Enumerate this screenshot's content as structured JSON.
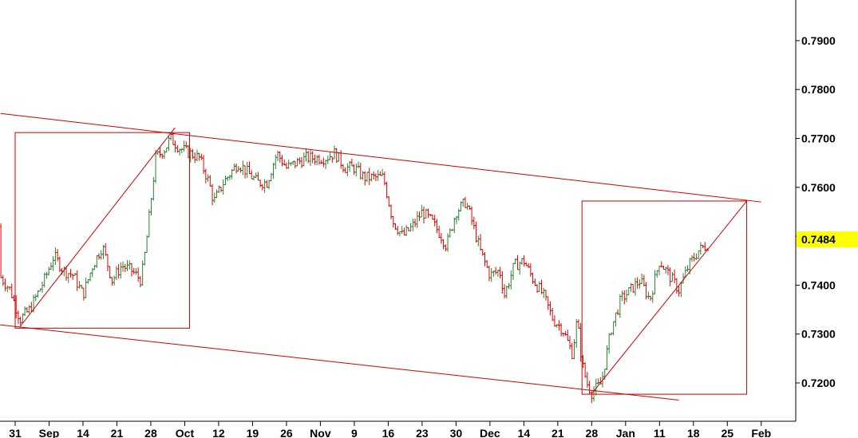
{
  "chart_data": {
    "type": "candlestick",
    "x_tick_labels": [
      "31",
      "Sep",
      "14",
      "21",
      "28",
      "Oct",
      "12",
      "19",
      "26",
      "Nov",
      "9",
      "16",
      "23",
      "30",
      "Dec",
      "14",
      "21",
      "28",
      "Jan",
      "11",
      "18",
      "25",
      "Feb"
    ],
    "y_tick_labels": [
      "0.7900",
      "0.7800",
      "0.7700",
      "0.7600",
      "0.7500",
      "0.7400",
      "0.7300",
      "0.7200"
    ],
    "ylim": [
      0.7125,
      0.8
    ],
    "last_price": "0.7484",
    "colors": {
      "up": "#2e7d32",
      "down": "#e00000",
      "annotation": "#cc0000",
      "price_tag": "#ffff00"
    },
    "channel_lines": [
      {
        "start": [
          "Aug 28",
          0.7751
        ],
        "end": [
          "Feb 01",
          0.757
        ]
      },
      {
        "start": [
          "Aug 25",
          0.7322
        ],
        "end": [
          "Jan 15",
          0.7165
        ]
      }
    ],
    "annotation_boxes": [
      {
        "from": "Aug 31",
        "to": "Oct 06",
        "low": 0.7312,
        "high": 0.7712
      },
      {
        "from": "Dec 26",
        "to": "Jan 29",
        "low": 0.7177,
        "high": 0.7572
      }
    ],
    "trend_lines": [
      {
        "start": [
          "Sep 01",
          0.7315
        ],
        "end": [
          "Oct 03",
          0.7722
        ]
      },
      {
        "start": [
          "Dec 28",
          0.7178
        ],
        "end": [
          "Jan 29",
          0.7572
        ]
      }
    ],
    "close_path": [
      [
        "Aug 24",
        0.752
      ],
      [
        "Aug 27",
        0.743
      ],
      [
        "Aug 30",
        0.739
      ],
      [
        "Sep 01",
        0.733
      ],
      [
        "Sep 03",
        0.735
      ],
      [
        "Sep 06",
        0.741
      ],
      [
        "Sep 08",
        0.746
      ],
      [
        "Sep 10",
        0.743
      ],
      [
        "Sep 12",
        0.742
      ],
      [
        "Sep 14",
        0.738
      ],
      [
        "Sep 16",
        0.744
      ],
      [
        "Sep 18",
        0.748
      ],
      [
        "Sep 20",
        0.741
      ],
      [
        "Sep 22",
        0.744
      ],
      [
        "Sep 24",
        0.743
      ],
      [
        "Sep 26",
        0.741
      ],
      [
        "Sep 27",
        0.748
      ],
      [
        "Sep 28",
        0.757
      ],
      [
        "Sep 29",
        0.766
      ],
      [
        "Sep 30",
        0.767
      ],
      [
        "Oct 01",
        0.768
      ],
      [
        "Oct 02",
        0.77
      ],
      [
        "Oct 04",
        0.768
      ],
      [
        "Oct 06",
        0.767
      ],
      [
        "Oct 08",
        0.766
      ],
      [
        "Oct 10",
        0.761
      ],
      [
        "Oct 11",
        0.757
      ],
      [
        "Oct 13",
        0.761
      ],
      [
        "Oct 16",
        0.765
      ],
      [
        "Oct 18",
        0.763
      ],
      [
        "Oct 20",
        0.761
      ],
      [
        "Oct 22",
        0.761
      ],
      [
        "Oct 24",
        0.767
      ],
      [
        "Oct 26",
        0.764
      ],
      [
        "Oct 28",
        0.765
      ],
      [
        "Oct 30",
        0.766
      ],
      [
        "Nov 01",
        0.766
      ],
      [
        "Nov 03",
        0.766
      ],
      [
        "Nov 05",
        0.767
      ],
      [
        "Nov 07",
        0.764
      ],
      [
        "Nov 09",
        0.764
      ],
      [
        "Nov 11",
        0.762
      ],
      [
        "Nov 13",
        0.762
      ],
      [
        "Nov 15",
        0.762
      ],
      [
        "Nov 17",
        0.753
      ],
      [
        "Nov 19",
        0.75
      ],
      [
        "Nov 21",
        0.752
      ],
      [
        "Nov 23",
        0.755
      ],
      [
        "Nov 25",
        0.753
      ],
      [
        "Nov 27",
        0.75
      ],
      [
        "Nov 28",
        0.748
      ],
      [
        "Nov 30",
        0.755
      ],
      [
        "Dec 02",
        0.757
      ],
      [
        "Dec 03",
        0.754
      ],
      [
        "Dec 05",
        0.747
      ],
      [
        "Dec 07",
        0.742
      ],
      [
        "Dec 09",
        0.743
      ],
      [
        "Dec 10",
        0.738
      ],
      [
        "Dec 12",
        0.744
      ],
      [
        "Dec 14",
        0.745
      ],
      [
        "Dec 16",
        0.741
      ],
      [
        "Dec 18",
        0.738
      ],
      [
        "Dec 20",
        0.733
      ],
      [
        "Dec 22",
        0.731
      ],
      [
        "Dec 24",
        0.726
      ],
      [
        "Dec 25",
        0.733
      ],
      [
        "Dec 26",
        0.724
      ],
      [
        "Dec 27",
        0.72
      ],
      [
        "Dec 28",
        0.718
      ],
      [
        "Dec 30",
        0.72
      ],
      [
        "Jan 01",
        0.731
      ],
      [
        "Jan 03",
        0.737
      ],
      [
        "Jan 05",
        0.739
      ],
      [
        "Jan 07",
        0.741
      ],
      [
        "Jan 09",
        0.737
      ],
      [
        "Jan 11",
        0.745
      ],
      [
        "Jan 13",
        0.742
      ],
      [
        "Jan 15",
        0.739
      ],
      [
        "Jan 17",
        0.744
      ],
      [
        "Jan 19",
        0.747
      ],
      [
        "Jan 21",
        0.7484
      ]
    ]
  }
}
